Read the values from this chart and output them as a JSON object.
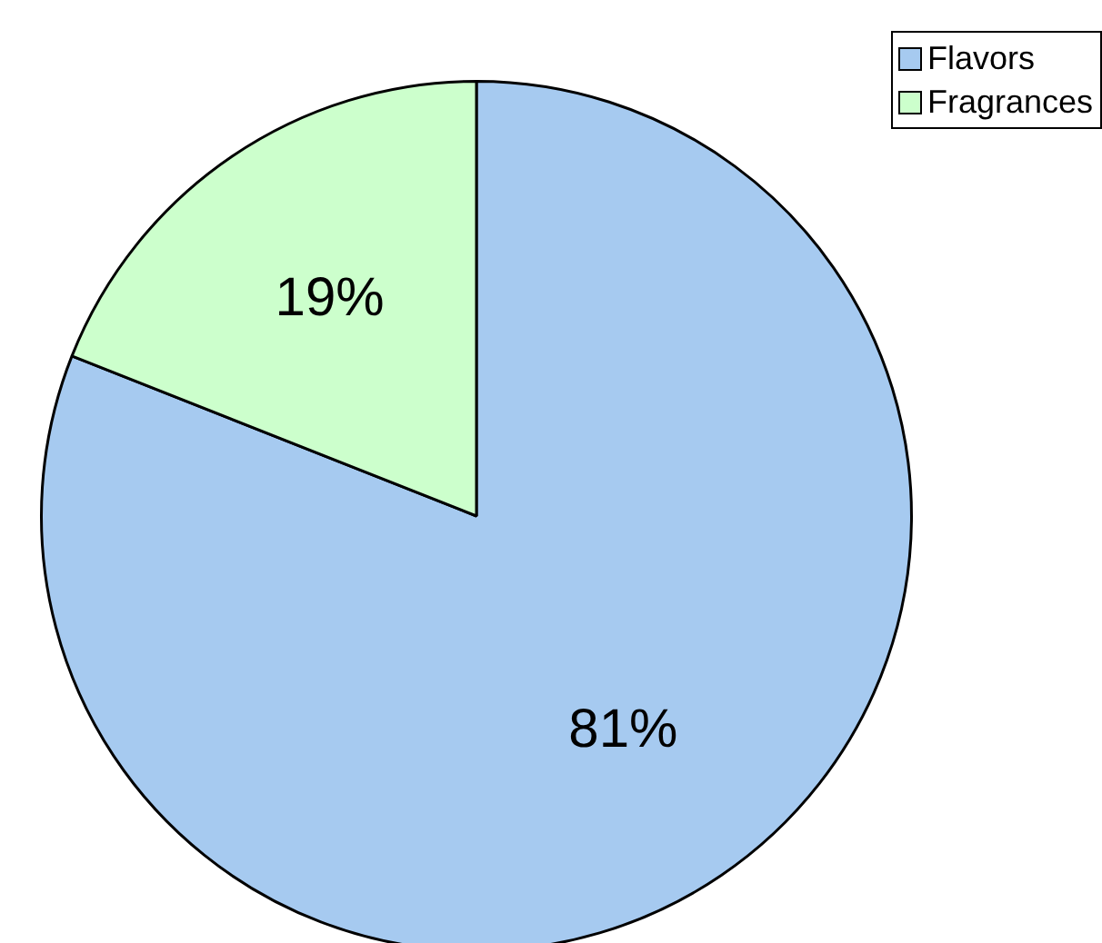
{
  "chart_data": {
    "type": "pie",
    "categories": [
      "Flavors",
      "Fragrances"
    ],
    "values": [
      81,
      19
    ],
    "colors": [
      "#a6caf0",
      "#ccffcc"
    ],
    "value_labels": [
      "81%",
      "19%"
    ],
    "legend": "top right"
  }
}
